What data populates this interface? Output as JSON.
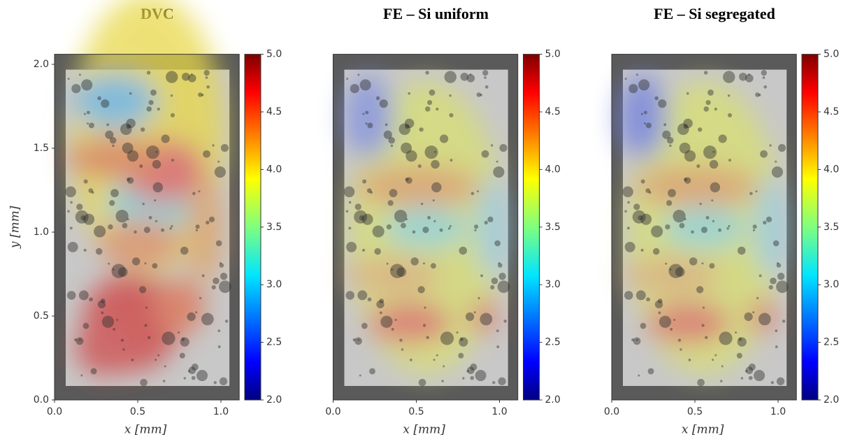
{
  "chart_data": [
    {
      "type": "heatmap",
      "title": "DVC",
      "x_label": "x [mm]",
      "y_label": "y [mm]",
      "colormap": "jet",
      "xlim": [
        0,
        1.11
      ],
      "ylim": [
        0,
        2.06
      ],
      "xticks": [
        {
          "value": 0,
          "label": "0.0"
        },
        {
          "value": 0.5,
          "label": "0.5"
        },
        {
          "value": 1,
          "label": "1.0"
        }
      ],
      "yticks": [
        {
          "value": 0,
          "label": "0.0"
        },
        {
          "value": 0.5,
          "label": "0.5"
        },
        {
          "value": 1,
          "label": "1.0"
        },
        {
          "value": 1.5,
          "label": "1.5"
        },
        {
          "value": 2,
          "label": "2.0"
        }
      ],
      "clim": [
        2,
        5
      ],
      "cticks": [
        {
          "value": 2,
          "label": "2.0"
        },
        {
          "value": 2.5,
          "label": "2.5"
        },
        {
          "value": 3,
          "label": "3.0"
        },
        {
          "value": 3.5,
          "label": "3.5"
        },
        {
          "value": 4,
          "label": "4.0"
        },
        {
          "value": 4.5,
          "label": "4.5"
        },
        {
          "value": 5,
          "label": "5.0"
        }
      ]
    },
    {
      "type": "heatmap",
      "title": "FE – Si uniform",
      "x_label": "x [mm]",
      "colormap": "jet",
      "xlim": [
        0,
        1.11
      ],
      "ylim": [
        0,
        2.06
      ],
      "xticks": [
        {
          "value": 0,
          "label": "0.0"
        },
        {
          "value": 0.5,
          "label": "0.5"
        },
        {
          "value": 1,
          "label": "1.0"
        }
      ],
      "clim": [
        2,
        5
      ],
      "cticks": [
        {
          "value": 2,
          "label": "2.0"
        },
        {
          "value": 2.5,
          "label": "2.5"
        },
        {
          "value": 3,
          "label": "3.0"
        },
        {
          "value": 3.5,
          "label": "3.5"
        },
        {
          "value": 4,
          "label": "4.0"
        },
        {
          "value": 4.5,
          "label": "4.5"
        },
        {
          "value": 5,
          "label": "5.0"
        }
      ]
    },
    {
      "type": "heatmap",
      "title": "FE – Si segregated",
      "x_label": "x [mm]",
      "colormap": "jet",
      "xlim": [
        0,
        1.11
      ],
      "ylim": [
        0,
        2.06
      ],
      "xticks": [
        {
          "value": 0,
          "label": "0.0"
        },
        {
          "value": 0.5,
          "label": "0.5"
        },
        {
          "value": 1,
          "label": "1.0"
        }
      ],
      "clim": [
        2,
        5
      ],
      "cticks": [
        {
          "value": 2,
          "label": "2.0"
        },
        {
          "value": 2.5,
          "label": "2.5"
        },
        {
          "value": 3,
          "label": "3.0"
        },
        {
          "value": 3.5,
          "label": "3.5"
        },
        {
          "value": 4,
          "label": "4.0"
        },
        {
          "value": 4.5,
          "label": "4.5"
        },
        {
          "value": 5,
          "label": "5.0"
        }
      ]
    }
  ]
}
